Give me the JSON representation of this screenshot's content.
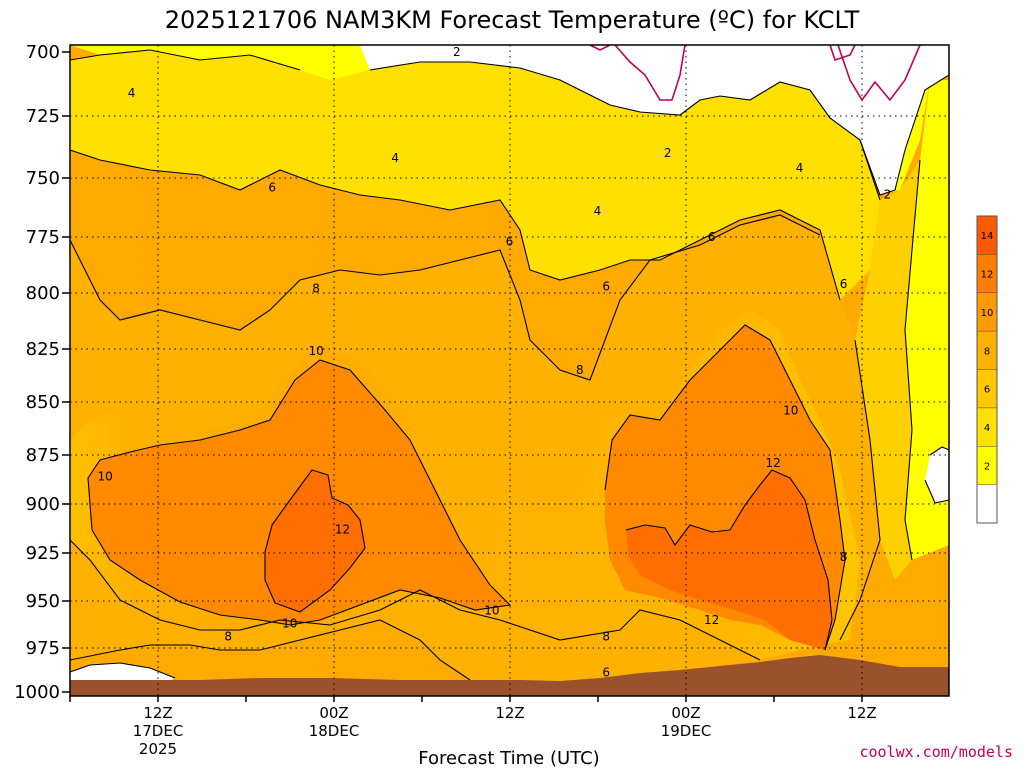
{
  "chart_data": {
    "type": "heatmap",
    "title": "2025121706 NAM3KM Forecast Temperature (ºC) for KCLT",
    "xlabel": "Forecast Time (UTC)",
    "ylabel": "",
    "credit": "coolwx.com/models",
    "yticks": [
      "700",
      "725",
      "750",
      "775",
      "800",
      "825",
      "850",
      "875",
      "900",
      "925",
      "950",
      "975",
      "1000"
    ],
    "ylim": [
      700,
      1000
    ],
    "xticks": [
      {
        "lines": [
          "12Z",
          "17DEC",
          "2025"
        ]
      },
      {
        "lines": [
          "00Z",
          "18DEC"
        ]
      },
      {
        "lines": [
          "12Z"
        ]
      },
      {
        "lines": [
          "00Z",
          "19DEC"
        ]
      },
      {
        "lines": [
          "12Z"
        ]
      }
    ],
    "legend": {
      "placement": "right",
      "labels": [
        "14",
        "12",
        "10",
        "8",
        "6",
        "4",
        "2"
      ],
      "colors": [
        "#ff5a00",
        "#ff7d00",
        "#ff9a00",
        "#ffb000",
        "#ffc800",
        "#ffe000",
        "#ffff00",
        "#ffffff"
      ]
    },
    "contour_labels": [
      {
        "text": "2",
        "p": 700,
        "t": 0.44
      },
      {
        "text": "2",
        "p": 740,
        "t": 0.68
      },
      {
        "text": "2",
        "p": 757,
        "t": 0.93
      },
      {
        "text": "4",
        "p": 716,
        "t": 0.07
      },
      {
        "text": "4",
        "p": 742,
        "t": 0.37
      },
      {
        "text": "4",
        "p": 764,
        "t": 0.6
      },
      {
        "text": "4",
        "p": 746,
        "t": 0.83
      },
      {
        "text": "6",
        "p": 754,
        "t": 0.23
      },
      {
        "text": "6",
        "p": 777,
        "t": 0.5
      },
      {
        "text": "6",
        "p": 775,
        "t": 0.73
      },
      {
        "text": "6",
        "p": 797,
        "t": 0.61
      },
      {
        "text": "6",
        "p": 796,
        "t": 0.88
      },
      {
        "text": "6",
        "p": 989,
        "t": 0.61
      },
      {
        "text": "8",
        "p": 798,
        "t": 0.28
      },
      {
        "text": "8",
        "p": 835,
        "t": 0.58
      },
      {
        "text": "8",
        "p": 969,
        "t": 0.18
      },
      {
        "text": "8",
        "p": 969,
        "t": 0.61
      },
      {
        "text": "8",
        "p": 927,
        "t": 0.88
      },
      {
        "text": "10",
        "p": 826,
        "t": 0.28
      },
      {
        "text": "10",
        "p": 886,
        "t": 0.04
      },
      {
        "text": "10",
        "p": 962,
        "t": 0.25
      },
      {
        "text": "10",
        "p": 955,
        "t": 0.48
      },
      {
        "text": "10",
        "p": 854,
        "t": 0.82
      },
      {
        "text": "12",
        "p": 913,
        "t": 0.31
      },
      {
        "text": "12",
        "p": 879,
        "t": 0.8
      },
      {
        "text": "12",
        "p": 960,
        "t": 0.73
      }
    ]
  }
}
